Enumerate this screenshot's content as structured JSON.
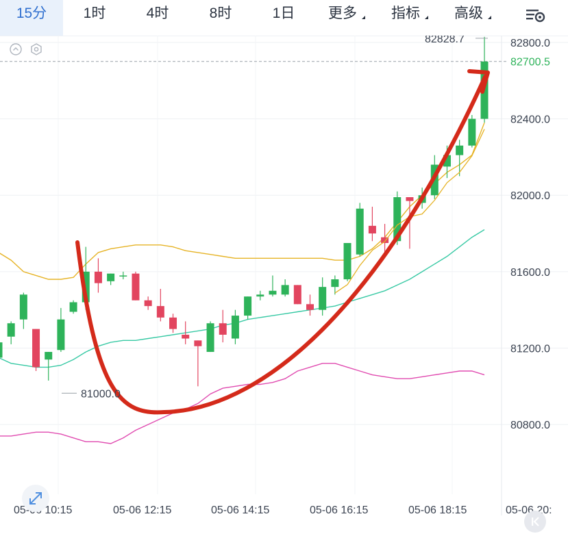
{
  "tabs": [
    {
      "label": "15分",
      "active": true
    },
    {
      "label": "1时"
    },
    {
      "label": "4时"
    },
    {
      "label": "8时"
    },
    {
      "label": "1日"
    },
    {
      "label": "更多",
      "dropdown": true
    },
    {
      "label": "指标",
      "dropdown": true
    },
    {
      "label": "高级",
      "dropdown": true
    }
  ],
  "icons": {
    "settings": "chart-settings-icon",
    "collapse": "chevron-up-circle-icon",
    "indicator_settings": "hexagon-gear-icon",
    "expand": "expand-arrows-icon",
    "scroll_end": "scroll-to-latest-icon",
    "annotation": "red-hand-drawn-arrow"
  },
  "colors": {
    "up": "#2eb35a",
    "down": "#e2455f",
    "ma_short": "#e6b325",
    "ma_mid": "#e6b325",
    "ma_long": "#37c9a4",
    "lower": "#e04bb0",
    "annotation": "#d42a1a",
    "current_price": "#2eb35a",
    "accent": "#2f6fcf"
  },
  "chart_data": {
    "type": "candlestick",
    "y_axis_labels": [
      "82800.0",
      "82400.0",
      "82000.0",
      "81600.0",
      "81200.0",
      "80800.0"
    ],
    "y_ticks": [
      82800,
      82400,
      82000,
      81600,
      81200,
      80800
    ],
    "x_axis_labels": [
      "05-06 10:15",
      "05-06 12:15",
      "05-06 14:15",
      "05-06 16:15",
      "05-06 18:15",
      "05-06 20:"
    ],
    "high_label": "82828.7",
    "low_label": "81000.0",
    "current_price_label": "82700.5",
    "current_price": 82700.5,
    "high_value": 82828.7,
    "low_value": 81000.0,
    "candles": [
      {
        "o": 81150,
        "h": 81240,
        "l": 81100,
        "c": 81230
      },
      {
        "o": 81260,
        "h": 81340,
        "l": 81220,
        "c": 81330
      },
      {
        "o": 81350,
        "h": 81490,
        "l": 81300,
        "c": 81480
      },
      {
        "o": 81300,
        "h": 81300,
        "l": 81080,
        "c": 81100
      },
      {
        "o": 81140,
        "h": 81180,
        "l": 81030,
        "c": 81180
      },
      {
        "o": 81190,
        "h": 81410,
        "l": 81180,
        "c": 81350
      },
      {
        "o": 81390,
        "h": 81450,
        "l": 81380,
        "c": 81440
      },
      {
        "o": 81440,
        "h": 81730,
        "l": 81400,
        "c": 81600
      },
      {
        "o": 81600,
        "h": 81670,
        "l": 81490,
        "c": 81540
      },
      {
        "o": 81550,
        "h": 81590,
        "l": 81530,
        "c": 81590
      },
      {
        "o": 81580,
        "h": 81600,
        "l": 81560,
        "c": 81580
      },
      {
        "o": 81590,
        "h": 81600,
        "l": 81450,
        "c": 81450
      },
      {
        "o": 81450,
        "h": 81470,
        "l": 81400,
        "c": 81420
      },
      {
        "o": 81420,
        "h": 81510,
        "l": 81340,
        "c": 81360
      },
      {
        "o": 81360,
        "h": 81380,
        "l": 81280,
        "c": 81300
      },
      {
        "o": 81270,
        "h": 81340,
        "l": 81220,
        "c": 81250
      },
      {
        "o": 81240,
        "h": 81240,
        "l": 81000,
        "c": 81210
      },
      {
        "o": 81180,
        "h": 81340,
        "l": 81180,
        "c": 81330
      },
      {
        "o": 81330,
        "h": 81400,
        "l": 81230,
        "c": 81270
      },
      {
        "o": 81250,
        "h": 81400,
        "l": 81220,
        "c": 81370
      },
      {
        "o": 81370,
        "h": 81470,
        "l": 81350,
        "c": 81470
      },
      {
        "o": 81470,
        "h": 81500,
        "l": 81450,
        "c": 81480
      },
      {
        "o": 81480,
        "h": 81580,
        "l": 81470,
        "c": 81500
      },
      {
        "o": 81480,
        "h": 81560,
        "l": 81470,
        "c": 81530
      },
      {
        "o": 81530,
        "h": 81530,
        "l": 81430,
        "c": 81430
      },
      {
        "o": 81430,
        "h": 81480,
        "l": 81370,
        "c": 81400
      },
      {
        "o": 81400,
        "h": 81570,
        "l": 81370,
        "c": 81520
      },
      {
        "o": 81520,
        "h": 81580,
        "l": 81480,
        "c": 81560
      },
      {
        "o": 81560,
        "h": 81740,
        "l": 81550,
        "c": 81750
      },
      {
        "o": 81690,
        "h": 81960,
        "l": 81680,
        "c": 81930
      },
      {
        "o": 81840,
        "h": 81940,
        "l": 81760,
        "c": 81800
      },
      {
        "o": 81780,
        "h": 81850,
        "l": 81680,
        "c": 81750
      },
      {
        "o": 81760,
        "h": 82020,
        "l": 81740,
        "c": 81990
      },
      {
        "o": 81990,
        "h": 81980,
        "l": 81720,
        "c": 81970
      },
      {
        "o": 81960,
        "h": 82040,
        "l": 81930,
        "c": 82000
      },
      {
        "o": 82000,
        "h": 82210,
        "l": 81980,
        "c": 82160
      },
      {
        "o": 82150,
        "h": 82260,
        "l": 82090,
        "c": 82210
      },
      {
        "o": 82210,
        "h": 82290,
        "l": 82100,
        "c": 82260
      },
      {
        "o": 82260,
        "h": 82420,
        "l": 82250,
        "c": 82400
      },
      {
        "o": 82400,
        "h": 82829,
        "l": 82380,
        "c": 82700
      }
    ],
    "ma_upper": [
      81700,
      81660,
      81600,
      81580,
      81560,
      81560,
      81570,
      81640,
      81700,
      81720,
      81730,
      81740,
      81740,
      81740,
      81730,
      81710,
      81700,
      81690,
      81680,
      81670,
      81670,
      81670,
      81670,
      81670,
      81670,
      81670,
      81670,
      81660,
      81660,
      81680,
      81720,
      81780,
      81860,
      81940,
      82000,
      82060,
      82120,
      82160,
      82210,
      82380
    ],
    "ma_long": [
      81150,
      81120,
      81110,
      81100,
      81100,
      81110,
      81140,
      81180,
      81210,
      81230,
      81240,
      81240,
      81250,
      81260,
      81270,
      81280,
      81290,
      81300,
      81320,
      81330,
      81350,
      81360,
      81370,
      81380,
      81390,
      81400,
      81410,
      81420,
      81440,
      81460,
      81480,
      81500,
      81530,
      81560,
      81600,
      81640,
      81680,
      81730,
      81780,
      81820
    ],
    "lower_band": [
      80740,
      80740,
      80750,
      80760,
      80760,
      80750,
      80730,
      80710,
      80710,
      80700,
      80730,
      80770,
      80800,
      80830,
      80860,
      80880,
      80910,
      80960,
      80990,
      81000,
      81010,
      81010,
      81020,
      81040,
      81080,
      81100,
      81120,
      81120,
      81100,
      81080,
      81060,
      81050,
      81040,
      81040,
      81050,
      81060,
      81070,
      81080,
      81080,
      81060
    ]
  }
}
